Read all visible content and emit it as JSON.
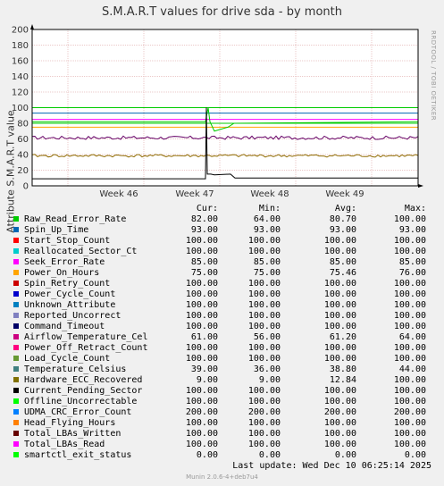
{
  "chart_data": {
    "type": "line",
    "title": "S.M.A.R.T values for drive sda - by month",
    "ylabel": "Attribute S.M.A.R.T value",
    "xlabel": "",
    "ylim": [
      0,
      200
    ],
    "y_ticks": [
      "0",
      "20",
      "40",
      "60",
      "80",
      "100",
      "120",
      "140",
      "160",
      "180",
      "200"
    ],
    "x_ticks": [
      "Week 46",
      "Week 47",
      "Week 48",
      "Week 49"
    ],
    "grid": true,
    "watermark": "RRDTOOL / TOBI OETIKER",
    "legend_headers": [
      "Cur:",
      "Min:",
      "Avg:",
      "Max:"
    ],
    "series": [
      {
        "name": "Raw_Read_Error_Rate",
        "color": "#00CC00",
        "cur": "82.00",
        "min": "64.00",
        "avg": "80.70",
        "max": "100.00"
      },
      {
        "name": "Spin_Up_Time",
        "color": "#0066B3",
        "cur": "93.00",
        "min": "93.00",
        "avg": "93.00",
        "max": "93.00"
      },
      {
        "name": "Start_Stop_Count",
        "color": "#FF8000",
        "cur": "100.00",
        "min": "100.00",
        "avg": "100.00",
        "max": "100.00"
      },
      {
        "name": "Reallocated_Sector_Ct",
        "color": "#FFCC00",
        "cur": "100.00",
        "min": "100.00",
        "avg": "100.00",
        "max": "100.00"
      },
      {
        "name": "Seek_Error_Rate",
        "color": "#330099",
        "cur": "85.00",
        "min": "85.00",
        "avg": "85.00",
        "max": "85.00"
      },
      {
        "name": "Power_On_Hours",
        "color": "#990099",
        "cur": "75.00",
        "min": "75.00",
        "avg": "75.46",
        "max": "76.00"
      },
      {
        "name": "Spin_Retry_Count",
        "color": "#CCFF00",
        "cur": "100.00",
        "min": "100.00",
        "avg": "100.00",
        "max": "100.00"
      },
      {
        "name": "Power_Cycle_Count",
        "color": "#FF0000",
        "cur": "100.00",
        "min": "100.00",
        "avg": "100.00",
        "max": "100.00"
      },
      {
        "name": "Unknown_Attribute",
        "color": "#808080",
        "cur": "100.00",
        "min": "100.00",
        "avg": "100.00",
        "max": "100.00"
      },
      {
        "name": "Reported_Uncorrect",
        "color": "#008F00",
        "cur": "100.00",
        "min": "100.00",
        "avg": "100.00",
        "max": "100.00"
      },
      {
        "name": "Command_Timeout",
        "color": "#00487D",
        "cur": "100.00",
        "min": "100.00",
        "avg": "100.00",
        "max": "100.00"
      },
      {
        "name": "Airflow_Temperature_Cel",
        "color": "#B35A00",
        "cur": "61.00",
        "min": "56.00",
        "avg": "61.20",
        "max": "64.00"
      },
      {
        "name": "Power_Off_Retract_Count",
        "color": "#B38F00",
        "cur": "100.00",
        "min": "100.00",
        "avg": "100.00",
        "max": "100.00"
      },
      {
        "name": "Load_Cycle_Count",
        "color": "#6B006B",
        "cur": "100.00",
        "min": "100.00",
        "avg": "100.00",
        "max": "100.00"
      },
      {
        "name": "Temperature_Celsius",
        "color": "#8FB300",
        "cur": "39.00",
        "min": "36.00",
        "avg": "38.80",
        "max": "44.00"
      },
      {
        "name": "Hardware_ECC_Recovered",
        "color": "#B30000",
        "cur": "9.00",
        "min": "9.00",
        "avg": "12.84",
        "max": "100.00"
      },
      {
        "name": "Current_Pending_Sector",
        "color": "#BEBEBE",
        "cur": "100.00",
        "min": "100.00",
        "avg": "100.00",
        "max": "100.00"
      },
      {
        "name": "Offline_Uncorrectable",
        "color": "#80FF80",
        "cur": "100.00",
        "min": "100.00",
        "avg": "100.00",
        "max": "100.00"
      },
      {
        "name": "UDMA_CRC_Error_Count",
        "color": "#80C9FF",
        "cur": "200.00",
        "min": "200.00",
        "avg": "200.00",
        "max": "200.00"
      },
      {
        "name": "Head_Flying_Hours",
        "color": "#FFC080",
        "cur": "100.00",
        "min": "100.00",
        "avg": "100.00",
        "max": "100.00"
      },
      {
        "name": "Total_LBAs_Written",
        "color": "#FFE680",
        "cur": "100.00",
        "min": "100.00",
        "avg": "100.00",
        "max": "100.00"
      },
      {
        "name": "Total_LBAs_Read",
        "color": "#AA80FF",
        "cur": "100.00",
        "min": "100.00",
        "avg": "100.00",
        "max": "100.00"
      },
      {
        "name": "smartctl_exit_status",
        "color": "#EE00CC",
        "cur": "0.00",
        "min": "0.00",
        "avg": "0.00",
        "max": "0.00"
      }
    ]
  },
  "legend_colors_drawn": [
    "#00CC00",
    "#0066B3",
    "#FF0000",
    "#00CCCC",
    "#FF00FF",
    "#FFA500",
    "#CC0000",
    "#0000CC",
    "#0080C0",
    "#8080C0",
    "#000066",
    "#CC0080",
    "#FF0080",
    "#669933",
    "#408080",
    "#807000",
    "#000000",
    "#00FF00",
    "#0080FF",
    "#FF8000",
    "#660000",
    "#FF00FF",
    "#00FF00",
    "#0000FF"
  ],
  "last_update": "Last update:  Wed Dec 10 06:25:14 2025",
  "footer": "Munin 2.0.6-4+deb7u4"
}
